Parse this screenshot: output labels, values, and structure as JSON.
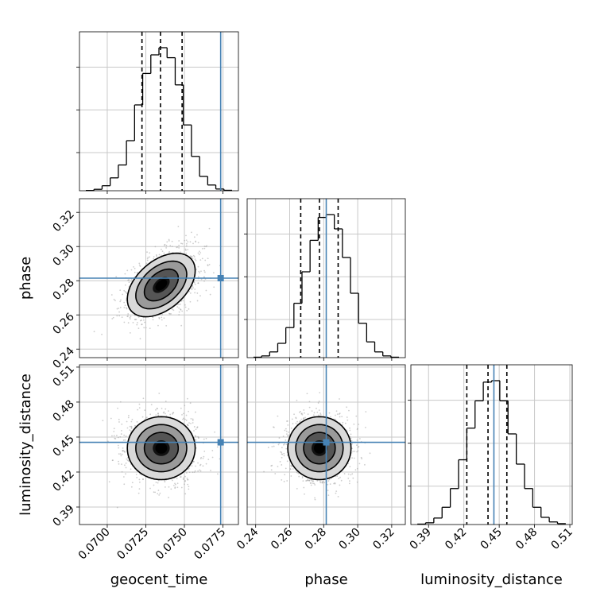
{
  "chart_data": {
    "type": "corner",
    "parameters": [
      {
        "name": "geocent_time",
        "label": "geocent_time",
        "range": [
          0.0682,
          0.0785
        ],
        "ticks": [
          "0.0700",
          "0.0725",
          "0.0750",
          "0.0775"
        ],
        "tick_values": [
          0.07,
          0.0725,
          0.075,
          0.0775
        ],
        "truth": 0.07735,
        "quantiles": [
          0.07225,
          0.07345,
          0.07485
        ]
      },
      {
        "name": "phase",
        "label": "phase",
        "range": [
          0.235,
          0.328
        ],
        "ticks": [
          "0.24",
          "0.26",
          "0.28",
          "0.30",
          "0.32"
        ],
        "tick_values": [
          0.24,
          0.26,
          0.28,
          0.3,
          0.32
        ],
        "truth": 0.2815,
        "quantiles": [
          0.2665,
          0.2775,
          0.2885
        ]
      },
      {
        "name": "luminosity_distance",
        "label": "luminosity_distance",
        "range": [
          0.375,
          0.512
        ],
        "ticks": [
          "0.39",
          "0.42",
          "0.45",
          "0.48",
          "0.51"
        ],
        "tick_values": [
          0.39,
          0.42,
          0.45,
          0.48,
          0.51
        ],
        "truth": 0.4455,
        "quantiles": [
          0.4225,
          0.4405,
          0.4565
        ]
      }
    ],
    "histograms": [
      [
        0.002,
        0.01,
        0.035,
        0.09,
        0.18,
        0.35,
        0.6,
        0.82,
        0.95,
        1.0,
        0.93,
        0.74,
        0.46,
        0.24,
        0.1,
        0.04,
        0.012,
        0.003
      ],
      [
        0.003,
        0.012,
        0.04,
        0.1,
        0.21,
        0.38,
        0.6,
        0.82,
        0.98,
        1.0,
        0.9,
        0.7,
        0.45,
        0.24,
        0.11,
        0.04,
        0.012,
        0.003
      ],
      [
        0.003,
        0.012,
        0.045,
        0.12,
        0.25,
        0.45,
        0.67,
        0.86,
        0.99,
        1.0,
        0.86,
        0.63,
        0.42,
        0.25,
        0.12,
        0.05,
        0.018,
        0.006
      ]
    ],
    "pair_stats": [
      {
        "x": 0,
        "y": 1,
        "mean": [
          0.0735,
          0.2775
        ],
        "sd": [
          0.0011,
          0.0093
        ],
        "corr": 0.45
      },
      {
        "x": 0,
        "y": 2,
        "mean": [
          0.0735,
          0.4405
        ],
        "sd": [
          0.0011,
          0.0135
        ],
        "corr": 0.0
      },
      {
        "x": 1,
        "y": 2,
        "mean": [
          0.2775,
          0.4405
        ],
        "sd": [
          0.0093,
          0.0135
        ],
        "corr": 0.0
      }
    ],
    "contour_levels": [
      0.5,
      1.0,
      1.5,
      2.0
    ],
    "grid": true,
    "colors": {
      "truth": "#4682b4",
      "hist": "#000000",
      "points": "#9e9e9e",
      "grid": "#c8c8c8"
    }
  }
}
